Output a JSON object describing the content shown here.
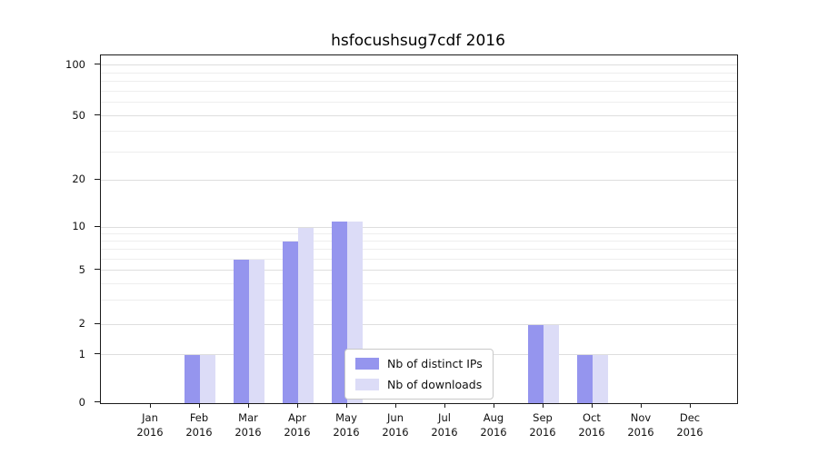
{
  "chart_data": {
    "type": "bar",
    "title": "hsfocushsug7cdf 2016",
    "categories": [
      "Jan",
      "Feb",
      "Mar",
      "Apr",
      "May",
      "Jun",
      "Jul",
      "Aug",
      "Sep",
      "Oct",
      "Nov",
      "Dec"
    ],
    "category_year": "2016",
    "series": [
      {
        "name": "Nb of distinct IPs",
        "color": "#9595ee",
        "values": [
          0,
          1,
          6,
          8,
          11,
          0,
          0,
          0,
          2,
          1,
          0,
          0
        ]
      },
      {
        "name": "Nb of downloads",
        "color": "#dcdcf7",
        "values": [
          0,
          1,
          6,
          10,
          11,
          0,
          0,
          0,
          2,
          1,
          0,
          0
        ]
      }
    ],
    "y_ticks": [
      0,
      1,
      2,
      5,
      10,
      20,
      50,
      100
    ],
    "y_minor_gridlines": [
      3,
      4,
      6,
      7,
      8,
      9,
      30,
      40,
      60,
      70,
      80,
      90
    ],
    "ylim": [
      0,
      100
    ],
    "scale": "log-like with zero baseline",
    "grid": true,
    "legend_position": "lower center"
  },
  "colors": {
    "grid_major": "#dedede",
    "grid_minor": "#eeeeee",
    "axis": "#1a1a1a",
    "text": "#111111"
  }
}
